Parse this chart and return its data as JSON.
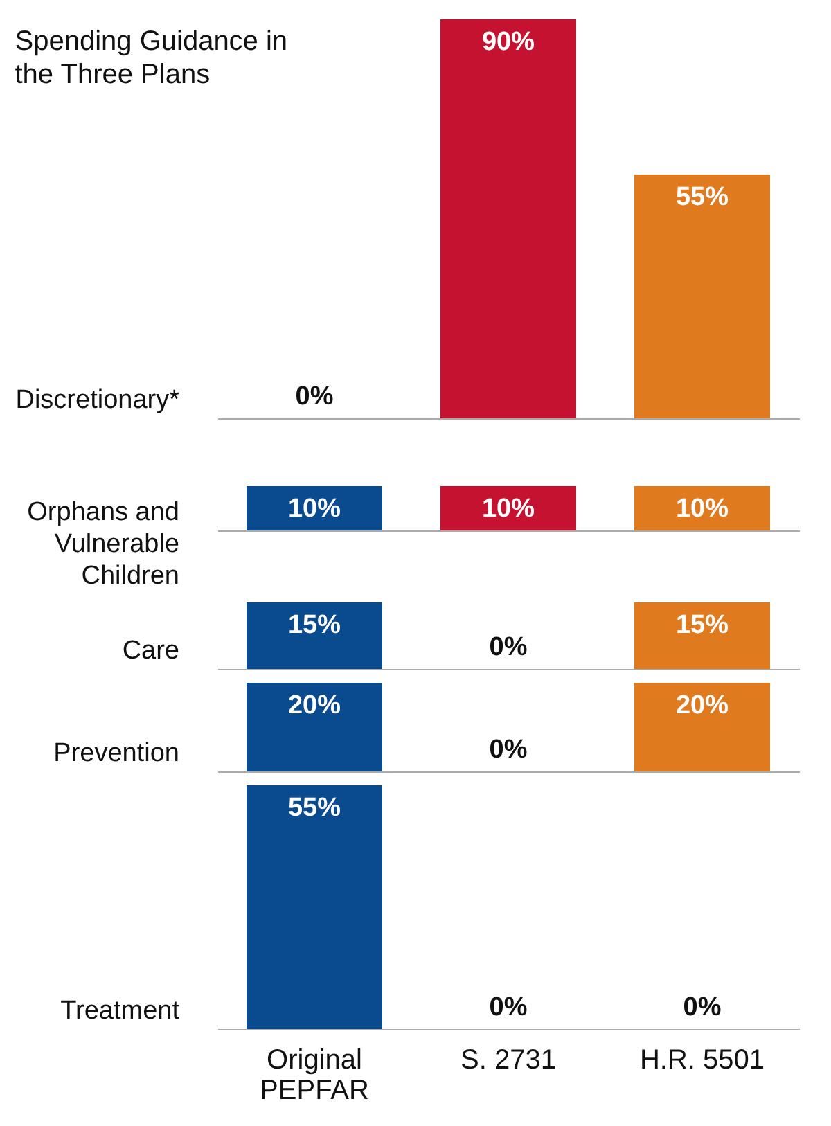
{
  "chart_data": [
    {
      "type": "bar",
      "title": "Spending Guidance in the Three Plans",
      "ylabel": "Discretionary*",
      "categories": [
        null,
        null,
        null
      ],
      "values": [
        0,
        90,
        55
      ],
      "value_labels": [
        "0%",
        "90%",
        "55%"
      ],
      "colors": [
        "#0a4a8f",
        "#c41230",
        "#e07a1f"
      ],
      "tick_labels": false
    },
    {
      "type": "bar",
      "ylabel": "Orphans and Vulnerable Children",
      "categories": [
        null,
        null,
        null
      ],
      "values": [
        10,
        10,
        10
      ],
      "value_labels": [
        "10%",
        "10%",
        "10%"
      ],
      "colors": [
        "#0a4a8f",
        "#c41230",
        "#e07a1f"
      ],
      "tick_labels": false
    },
    {
      "type": "bar",
      "ylabel": "Care",
      "categories": [
        null,
        null,
        null
      ],
      "values": [
        15,
        0,
        15
      ],
      "value_labels": [
        "15%",
        "0%",
        "15%"
      ],
      "colors": [
        "#0a4a8f",
        "#c41230",
        "#e07a1f"
      ],
      "tick_labels": false
    },
    {
      "type": "bar",
      "ylabel": "Prevention",
      "categories": [
        null,
        null,
        null
      ],
      "values": [
        20,
        0,
        20
      ],
      "value_labels": [
        "20%",
        "0%",
        "20%"
      ],
      "colors": [
        "#0a4a8f",
        "#c41230",
        "#e07a1f"
      ],
      "tick_labels": false
    },
    {
      "type": "bar",
      "ylabel": "Treatment",
      "categories": [
        "Original PEPFAR",
        "S. 2731",
        "H.R. 5501"
      ],
      "values": [
        55,
        0,
        0
      ],
      "value_labels": [
        "55%",
        "0%",
        "0%"
      ],
      "colors": [
        "#0a4a8f",
        "#c41230",
        "#e07a1f"
      ],
      "tick_labels": "x"
    }
  ]
}
